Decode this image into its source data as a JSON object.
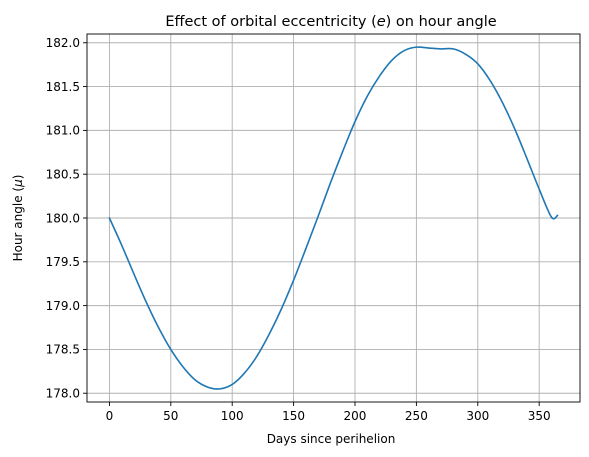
{
  "chart_data": {
    "type": "line",
    "title_parts": [
      "Effect of orbital eccentricity (",
      "e",
      ") on hour angle"
    ],
    "xlabel": "Days since perihelion",
    "ylabel_parts": [
      "Hour angle (",
      "μ",
      ")"
    ],
    "xlim": [
      -18.25,
      383.25
    ],
    "ylim": [
      177.9,
      182.1
    ],
    "x_ticks": [
      0,
      50,
      100,
      150,
      200,
      250,
      300,
      350
    ],
    "y_ticks": [
      178.0,
      178.5,
      179.0,
      179.5,
      180.0,
      180.5,
      181.0,
      181.5,
      182.0
    ],
    "x_tick_labels": [
      "0",
      "50",
      "100",
      "150",
      "200",
      "250",
      "300",
      "350"
    ],
    "y_tick_labels": [
      "178.0",
      "178.5",
      "179.0",
      "179.5",
      "180.0",
      "180.5",
      "181.0",
      "181.5",
      "182.0"
    ],
    "grid": true,
    "line_color": "#1f77b4",
    "series": [
      {
        "x": [
          0,
          10,
          20,
          30,
          40,
          50,
          60,
          70,
          80,
          90,
          100,
          110,
          120,
          130,
          140,
          150,
          160,
          170,
          180,
          190,
          200,
          210,
          220,
          230,
          240,
          250,
          260,
          270,
          280,
          290,
          300,
          310,
          320,
          330,
          340,
          350,
          360,
          365
        ],
        "y": [
          180.0,
          179.69,
          179.36,
          179.04,
          178.75,
          178.5,
          178.3,
          178.15,
          178.07,
          178.05,
          178.1,
          178.23,
          178.42,
          178.67,
          178.96,
          179.29,
          179.65,
          180.02,
          180.4,
          180.76,
          181.1,
          181.39,
          181.62,
          181.8,
          181.91,
          181.95,
          181.94,
          181.93,
          181.93,
          181.87,
          181.76,
          181.57,
          181.32,
          181.02,
          180.68,
          180.33,
          180.01,
          180.03
        ]
      }
    ]
  }
}
